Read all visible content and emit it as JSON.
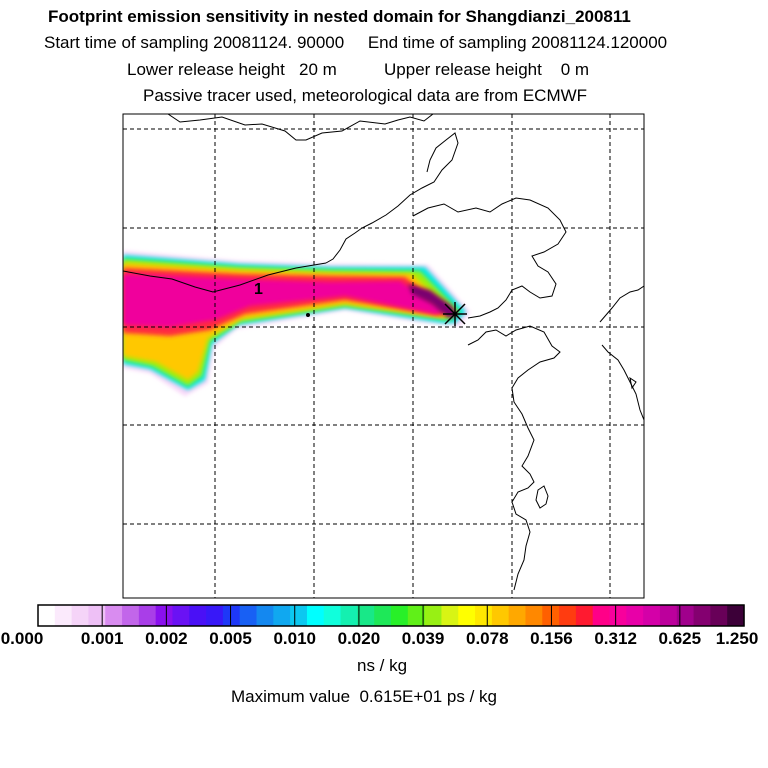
{
  "header": {
    "title": "Footprint emission sensitivity in nested domain for Shangdianzi_200811",
    "sampling": "Start time of sampling 20081124. 90000     End time of sampling 20081124.120000",
    "release": "Lower release height   20 m          Upper release height    0 m",
    "tracer": "Passive tracer used, meteorological data are from ECMWF"
  },
  "map": {
    "contour_label": "1",
    "receptor_marker": "x-star",
    "coastline_color": "#000000",
    "grid_style": "dashed"
  },
  "colorbar": {
    "tick_labels": [
      "0.000",
      "0.001",
      "0.002",
      "0.005",
      "0.010",
      "0.020",
      "0.039",
      "0.078",
      "0.156",
      "0.312",
      "0.625",
      "1.250"
    ],
    "colors": [
      "#ffffff",
      "#fbeafc",
      "#f5d4f8",
      "#eec0f6",
      "#d98cf0",
      "#c266ea",
      "#a93ee8",
      "#8a10ee",
      "#6a12f4",
      "#4a10f6",
      "#3818f8",
      "#1e38f8",
      "#1860f4",
      "#1488f0",
      "#10a8f0",
      "#0cc8f0",
      "#00ffff",
      "#10ffdc",
      "#14f0b0",
      "#18e888",
      "#1ee858",
      "#28f028",
      "#60f018",
      "#98f014",
      "#d8f414",
      "#ffff00",
      "#ffe800",
      "#ffc800",
      "#ffa800",
      "#ff8800",
      "#ff6000",
      "#ff3c10",
      "#ff1a30",
      "#ff0088",
      "#f8009c",
      "#e800a8",
      "#d400a8",
      "#bc009c",
      "#a0008c",
      "#840070",
      "#680058",
      "#3c0038"
    ],
    "unit": "ns / kg",
    "max_value_text": "Maximum value  0.615E+01 ps / kg"
  }
}
